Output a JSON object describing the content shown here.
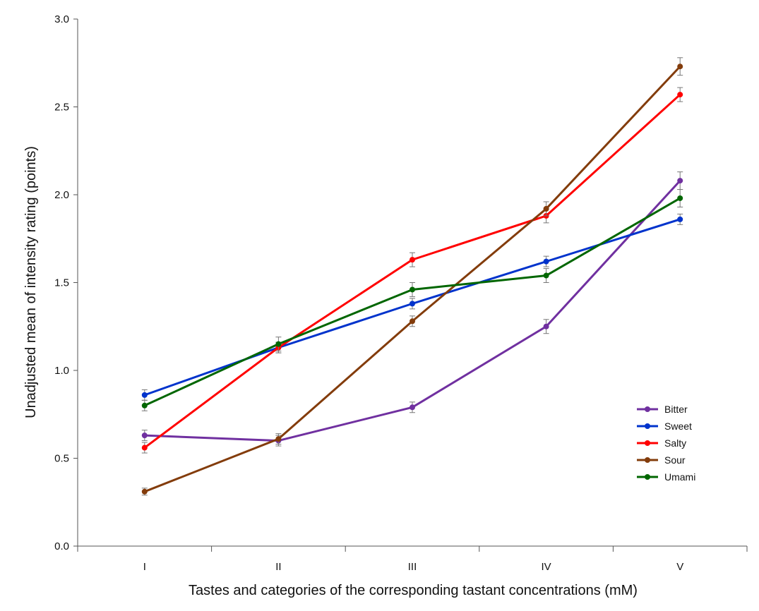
{
  "chart_data": {
    "type": "line",
    "xlabel": "Tastes and categories of the corresponding tastant concentrations (mM)",
    "ylabel": "Unadjusted mean of intensity rating (points)",
    "categories": [
      "I",
      "II",
      "III",
      "IV",
      "V"
    ],
    "ylim": [
      0,
      3
    ],
    "yticks": [
      "0.0",
      "0.5",
      "1.0",
      "1.5",
      "2.0",
      "2.5",
      "3.0"
    ],
    "grid": false,
    "legend_position": "bottom-right",
    "series": [
      {
        "name": "Bitter",
        "color": "#7030a0",
        "values": [
          0.63,
          0.6,
          0.79,
          1.25,
          2.08
        ],
        "errors": [
          0.03,
          0.03,
          0.03,
          0.04,
          0.05
        ]
      },
      {
        "name": "Sweet",
        "color": "#0033cc",
        "values": [
          0.86,
          1.13,
          1.38,
          1.62,
          1.86
        ],
        "errors": [
          0.03,
          0.03,
          0.03,
          0.03,
          0.03
        ]
      },
      {
        "name": "Salty",
        "color": "#ff0000",
        "values": [
          0.56,
          1.13,
          1.63,
          1.88,
          2.57
        ],
        "errors": [
          0.03,
          0.03,
          0.04,
          0.04,
          0.04
        ]
      },
      {
        "name": "Sour",
        "color": "#833c0b",
        "values": [
          0.31,
          0.61,
          1.28,
          1.92,
          2.73
        ],
        "errors": [
          0.02,
          0.03,
          0.03,
          0.04,
          0.05
        ]
      },
      {
        "name": "Umami",
        "color": "#006600",
        "values": [
          0.8,
          1.15,
          1.46,
          1.54,
          1.98
        ],
        "errors": [
          0.03,
          0.04,
          0.04,
          0.04,
          0.05
        ]
      }
    ]
  }
}
